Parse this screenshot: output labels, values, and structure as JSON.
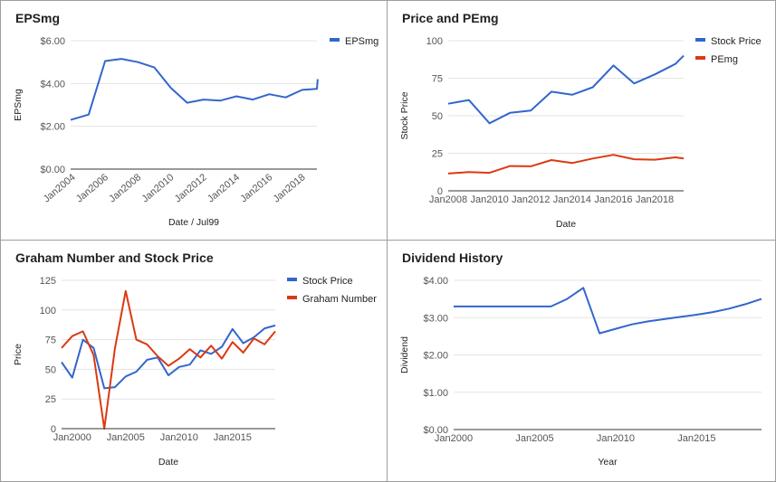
{
  "colors": {
    "blue": "#3366cc",
    "red": "#dc3912",
    "grid": "#e3e3e3",
    "axis": "#333333"
  },
  "chart_data": [
    {
      "type": "line",
      "title": "EPSmg",
      "xlabel": "Date / Jul99",
      "ylabel": "EPSmg",
      "x_ticks": [
        "Jan2004",
        "Jan2006",
        "Jan2008",
        "Jan2010",
        "Jan2012",
        "Jan2014",
        "Jan2016",
        "Jan2018"
      ],
      "y_ticks": [
        "$0.00",
        "$2.00",
        "$4.00",
        "$6.00"
      ],
      "xlim": [
        2003.9,
        2018.9
      ],
      "ylim": [
        0,
        6
      ],
      "legend_position": "right",
      "series": [
        {
          "name": "EPSmg",
          "color": "blue",
          "x": [
            2003.9,
            2005,
            2006,
            2007,
            2008,
            2009,
            2010,
            2011,
            2012,
            2013,
            2014,
            2015,
            2016,
            2017,
            2018,
            2018.9,
            2018.95
          ],
          "y": [
            2.3,
            2.55,
            5.05,
            5.15,
            5.0,
            4.75,
            3.8,
            3.1,
            3.25,
            3.2,
            3.4,
            3.25,
            3.5,
            3.35,
            3.7,
            3.75,
            4.2
          ]
        }
      ]
    },
    {
      "type": "line",
      "title": "Price and PEmg",
      "xlabel": "Date",
      "ylabel": "Stock Price",
      "x_ticks": [
        "Jan2008",
        "Jan2010",
        "Jan2012",
        "Jan2014",
        "Jan2016",
        "Jan2018"
      ],
      "y_ticks": [
        "0",
        "25",
        "50",
        "75",
        "100"
      ],
      "xlim": [
        2008,
        2019.4
      ],
      "ylim": [
        0,
        100
      ],
      "legend_position": "right",
      "series": [
        {
          "name": "Stock Price",
          "color": "blue",
          "x": [
            2008,
            2009,
            2010,
            2011,
            2012,
            2013,
            2014,
            2015,
            2016,
            2017,
            2018,
            2019,
            2019.4
          ],
          "y": [
            58,
            60.5,
            45,
            52,
            53.5,
            66,
            64,
            69,
            83.5,
            71.5,
            77.5,
            84.5,
            90
          ]
        },
        {
          "name": "PEmg",
          "color": "red",
          "x": [
            2008,
            2009,
            2010,
            2011,
            2012,
            2013,
            2014,
            2015,
            2016,
            2017,
            2018,
            2019,
            2019.4
          ],
          "y": [
            11.5,
            12.5,
            12,
            16.5,
            16.3,
            20.5,
            18.5,
            21.5,
            24,
            21,
            20.7,
            22.3,
            21.5
          ]
        }
      ]
    },
    {
      "type": "line",
      "title": "Graham Number and Stock Price",
      "xlabel": "Date",
      "ylabel": "Price",
      "x_ticks": [
        "Jan2000",
        "Jan2005",
        "Jan2010",
        "Jan2015"
      ],
      "y_ticks": [
        "0",
        "25",
        "50",
        "75",
        "100",
        "125"
      ],
      "xlim": [
        1999,
        2019
      ],
      "ylim": [
        0,
        125
      ],
      "legend_position": "right",
      "series": [
        {
          "name": "Stock Price",
          "color": "blue",
          "x": [
            1999,
            2000,
            2001,
            2002,
            2003,
            2004,
            2005,
            2006,
            2007,
            2008,
            2009,
            2010,
            2011,
            2012,
            2013,
            2014,
            2015,
            2016,
            2017,
            2018,
            2019
          ],
          "y": [
            56,
            43,
            75,
            68,
            34,
            35,
            44,
            48,
            58,
            60,
            45,
            52,
            54,
            66,
            63,
            69,
            84,
            72,
            77,
            84.5,
            87
          ]
        },
        {
          "name": "Graham Number",
          "color": "red",
          "x": [
            1999,
            2000,
            2001,
            2002,
            2003,
            2004,
            2005,
            2006,
            2007,
            2008,
            2009,
            2010,
            2011,
            2012,
            2013,
            2014,
            2015,
            2016,
            2017,
            2018,
            2019
          ],
          "y": [
            68,
            78,
            82,
            62,
            0,
            68,
            116,
            75,
            71,
            61,
            53,
            59,
            67,
            60,
            70,
            59,
            73,
            64,
            76,
            71,
            82
          ]
        }
      ]
    },
    {
      "type": "line",
      "title": "Dividend History",
      "xlabel": "Year",
      "ylabel": "Dividend",
      "x_ticks": [
        "Jan2000",
        "Jan2005",
        "Jan2010",
        "Jan2015"
      ],
      "y_ticks": [
        "$0.00",
        "$1.00",
        "$2.00",
        "$3.00",
        "$4.00"
      ],
      "xlim": [
        2000,
        2019
      ],
      "ylim": [
        0,
        4
      ],
      "series": [
        {
          "name": "Dividend",
          "color": "blue",
          "x": [
            2000,
            2001,
            2002,
            2003,
            2004,
            2005,
            2006,
            2007,
            2008,
            2009,
            2010,
            2011,
            2012,
            2013,
            2014,
            2015,
            2016,
            2017,
            2018,
            2019
          ],
          "y": [
            3.3,
            3.3,
            3.3,
            3.3,
            3.3,
            3.3,
            3.3,
            3.5,
            3.8,
            2.58,
            2.7,
            2.82,
            2.9,
            2.96,
            3.02,
            3.08,
            3.15,
            3.24,
            3.36,
            3.5
          ]
        }
      ]
    }
  ]
}
